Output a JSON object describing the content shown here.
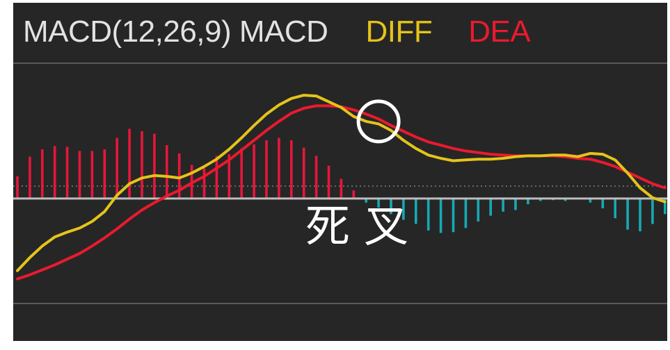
{
  "legend": {
    "label": "MACD(12,26,9) MACD",
    "diff": "DIFF",
    "dea": "DEA"
  },
  "annotation": "死 叉",
  "colors": {
    "background": "#262626",
    "diff": "#e5c31a",
    "dea": "#ea1a2e",
    "positive_bar": "#e8163a",
    "negative_bar": "#18a8b4",
    "zero_line": "#bdbdbd",
    "grid": "#555555",
    "marker": "#ffffff"
  },
  "chart_data": {
    "type": "line",
    "x": [
      0,
      1,
      2,
      3,
      4,
      5,
      6,
      7,
      8,
      9,
      10,
      11,
      12,
      13,
      14,
      15,
      16,
      17,
      18,
      19,
      20,
      21,
      22,
      23,
      24,
      25,
      26,
      27,
      28,
      29,
      30,
      31,
      32,
      33,
      34,
      35,
      36,
      37,
      38,
      39,
      40,
      41,
      42,
      43,
      44,
      45,
      46,
      47,
      48,
      49,
      50,
      51,
      52
    ],
    "series": [
      {
        "name": "DIFF",
        "values": [
          -0.88,
          -0.72,
          -0.58,
          -0.47,
          -0.41,
          -0.36,
          -0.28,
          -0.16,
          0.04,
          0.18,
          0.25,
          0.28,
          0.27,
          0.25,
          0.31,
          0.39,
          0.48,
          0.6,
          0.74,
          0.89,
          1.03,
          1.14,
          1.22,
          1.26,
          1.25,
          1.18,
          1.11,
          1.0,
          0.94,
          0.91,
          0.83,
          0.71,
          0.61,
          0.53,
          0.49,
          0.46,
          0.47,
          0.48,
          0.48,
          0.49,
          0.51,
          0.52,
          0.52,
          0.53,
          0.53,
          0.51,
          0.55,
          0.54,
          0.47,
          0.31,
          0.13,
          0.01,
          -0.04
        ]
      },
      {
        "name": "DEA",
        "values": [
          -0.98,
          -0.93,
          -0.87,
          -0.81,
          -0.74,
          -0.67,
          -0.58,
          -0.48,
          -0.37,
          -0.25,
          -0.14,
          -0.05,
          0.03,
          0.1,
          0.19,
          0.27,
          0.37,
          0.47,
          0.59,
          0.71,
          0.83,
          0.94,
          1.04,
          1.1,
          1.13,
          1.13,
          1.12,
          1.08,
          1.03,
          0.97,
          0.89,
          0.82,
          0.75,
          0.69,
          0.65,
          0.61,
          0.58,
          0.56,
          0.54,
          0.53,
          0.52,
          0.52,
          0.52,
          0.52,
          0.51,
          0.49,
          0.48,
          0.44,
          0.39,
          0.32,
          0.25,
          0.18,
          0.13
        ]
      }
    ],
    "histogram": {
      "name": "MACD",
      "values": [
        0.27,
        0.51,
        0.6,
        0.64,
        0.63,
        0.58,
        0.58,
        0.6,
        0.74,
        0.85,
        0.82,
        0.79,
        0.65,
        0.55,
        0.41,
        0.37,
        0.52,
        0.54,
        0.61,
        0.66,
        0.71,
        0.74,
        0.71,
        0.62,
        0.52,
        0.4,
        0.24,
        0.1,
        -0.05,
        -0.11,
        -0.19,
        -0.26,
        -0.31,
        -0.39,
        -0.42,
        -0.41,
        -0.36,
        -0.28,
        -0.21,
        -0.16,
        -0.14,
        -0.07,
        -0.03,
        -0.02,
        -0.03,
        0.0,
        -0.05,
        -0.12,
        -0.24,
        -0.38,
        -0.4,
        -0.31,
        -0.19
      ]
    },
    "ylim": [
      -1.28,
      1.65
    ],
    "zero_line": true,
    "marker": {
      "label": "死叉",
      "x": 29
    }
  }
}
